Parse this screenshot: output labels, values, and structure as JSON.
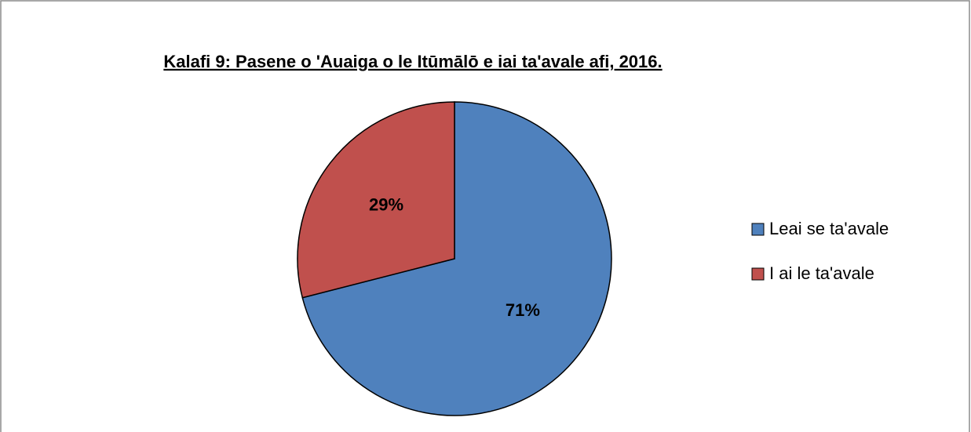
{
  "chart_data": {
    "type": "pie",
    "title": "Kalafi 9: Pasene o 'Auaiga o le Itūmālō e iai ta'avale afi, 2016.",
    "categories": [
      "Leai se ta'avale",
      "I ai le ta'avale"
    ],
    "values": [
      71,
      29
    ],
    "value_labels": [
      "71%",
      "29%"
    ],
    "colors": [
      "#4f81bd",
      "#c0504d"
    ],
    "legend": "right"
  }
}
